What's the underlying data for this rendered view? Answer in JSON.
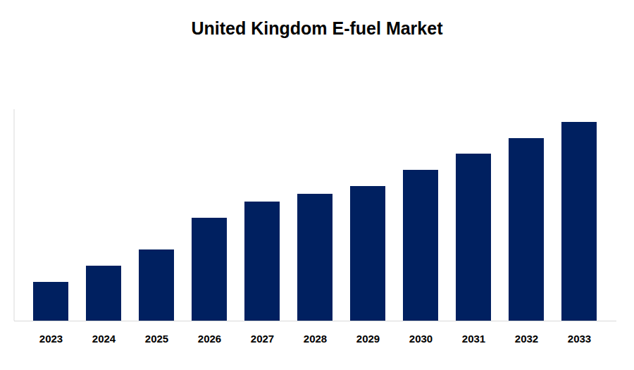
{
  "chart_data": {
    "type": "bar",
    "title": "United Kingdom E-fuel Market",
    "categories": [
      "2023",
      "2024",
      "2025",
      "2026",
      "2027",
      "2028",
      "2029",
      "2030",
      "2031",
      "2032",
      "2033"
    ],
    "values": [
      55,
      78,
      101,
      146,
      169,
      180,
      191,
      214,
      237,
      259,
      282
    ],
    "color": "#002060",
    "ylim": [
      0,
      300
    ],
    "yticks": [],
    "grid": false,
    "tick_labels": "x"
  }
}
